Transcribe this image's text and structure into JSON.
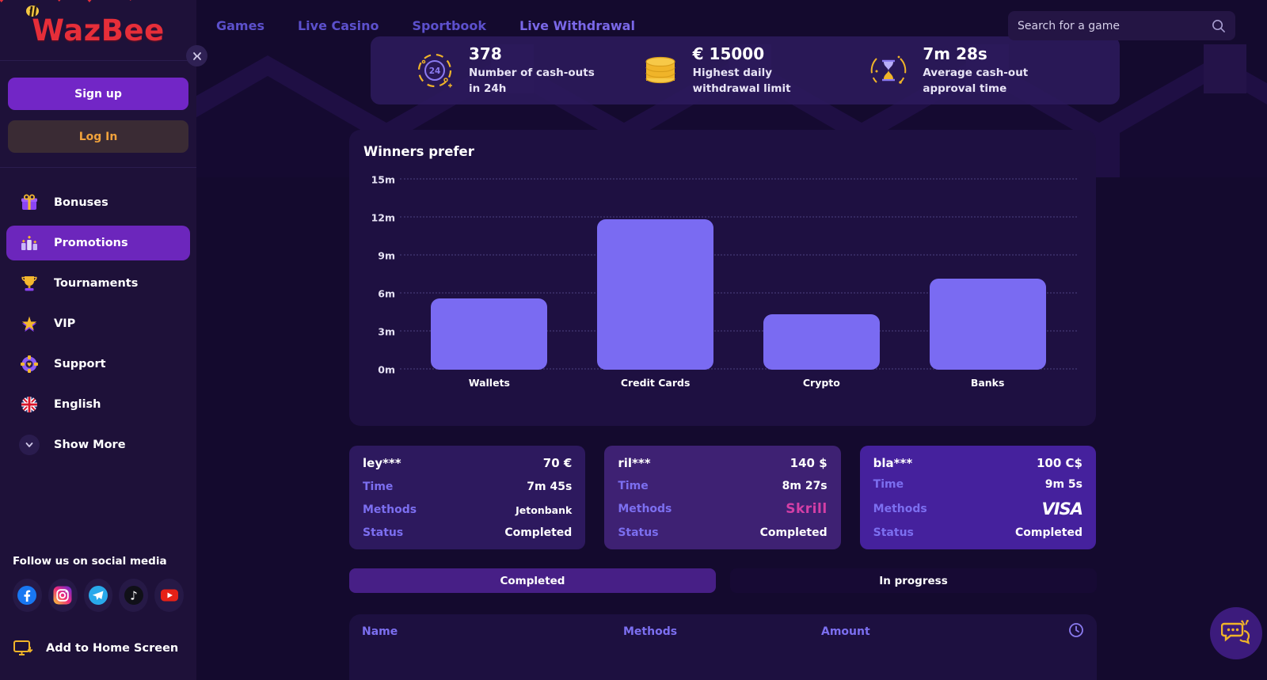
{
  "brand": {
    "name": "WazBee"
  },
  "topnav": {
    "links": [
      {
        "label": "Games"
      },
      {
        "label": "Live Casino"
      },
      {
        "label": "Sportbook"
      },
      {
        "label": "Live Withdrawal",
        "active": true
      }
    ],
    "search_placeholder": "Search for a game"
  },
  "sidebar": {
    "signup_label": "Sign up",
    "login_label": "Log In",
    "items": [
      {
        "label": "Bonuses",
        "icon": "gift-icon"
      },
      {
        "label": "Promotions",
        "icon": "podium-icon",
        "active": true
      },
      {
        "label": "Tournaments",
        "icon": "trophy-icon"
      },
      {
        "label": "VIP",
        "icon": "star-icon"
      },
      {
        "label": "Support",
        "icon": "lifebuoy-icon"
      },
      {
        "label": "English",
        "icon": "uk-flag-icon"
      },
      {
        "label": "Show More",
        "icon": "chevron-down-icon"
      }
    ],
    "social_label": "Follow us on social media",
    "social": [
      "facebook",
      "instagram",
      "telegram",
      "tiktok",
      "youtube"
    ],
    "add_home_label": "Add to Home Screen"
  },
  "stats": [
    {
      "icon": "24-hours-icon",
      "value": "378",
      "label": "Number of cash-outs in 24h"
    },
    {
      "icon": "coins-icon",
      "value": "€ 15000",
      "label": "Highest daily withdrawal limit"
    },
    {
      "icon": "hourglass-icon",
      "value": "7m 28s",
      "label": "Average cash-out approval time"
    }
  ],
  "chart_data": {
    "type": "bar",
    "title": "Winners prefer",
    "categories": [
      "Wallets",
      "Credit Cards",
      "Crypto",
      "Banks"
    ],
    "values": [
      5.6,
      11.9,
      4.4,
      7.2
    ],
    "unit": "minutes",
    "ylim": [
      0,
      15
    ],
    "ytick_labels": [
      "0m",
      "3m",
      "6m",
      "9m",
      "12m",
      "15m"
    ],
    "xlabel": "",
    "ylabel": "",
    "grid": "horizontal-dotted",
    "legend": "none",
    "bar_color": "#7a6bf2"
  },
  "card_row_labels": {
    "time": "Time",
    "methods": "Methods",
    "status": "Status"
  },
  "winner_cards": [
    {
      "name": "ley***",
      "amount": "70 €",
      "time": "7m 45s",
      "method": "Jetonbank",
      "status": "Completed"
    },
    {
      "name": "ril***",
      "amount": "140 $",
      "time": "8m 27s",
      "method": "Skrill",
      "status": "Completed"
    },
    {
      "name": "bla***",
      "amount": "100 C$",
      "time": "9m 5s",
      "method": "VISA",
      "status": "Completed"
    }
  ],
  "tabs": [
    {
      "label": "Completed",
      "active": true
    },
    {
      "label": "In progress",
      "active": false
    }
  ],
  "table": {
    "columns": [
      "Name",
      "Methods",
      "Amount"
    ]
  },
  "colors": {
    "brand_red": "#e62e39",
    "accent_purple": "#7226c6",
    "active_item_purple": "#6c26bc",
    "bar_violet": "#7a6bf2",
    "label_violet": "#7c6ff0",
    "gold": "#f0b429",
    "login_orange": "#f0a23c",
    "skrill_magenta": "#d43fa6",
    "sidebar_bg": "#1e1139",
    "page_bg": "#140a2e",
    "panel_bg": "#1e1041",
    "stats_panel_bg": "#2c1a5c",
    "card1_bg": "#2d195e",
    "card2_bg": "#3e2173",
    "card3_bg": "#45219d",
    "tab_active_bg": "#471f86"
  }
}
